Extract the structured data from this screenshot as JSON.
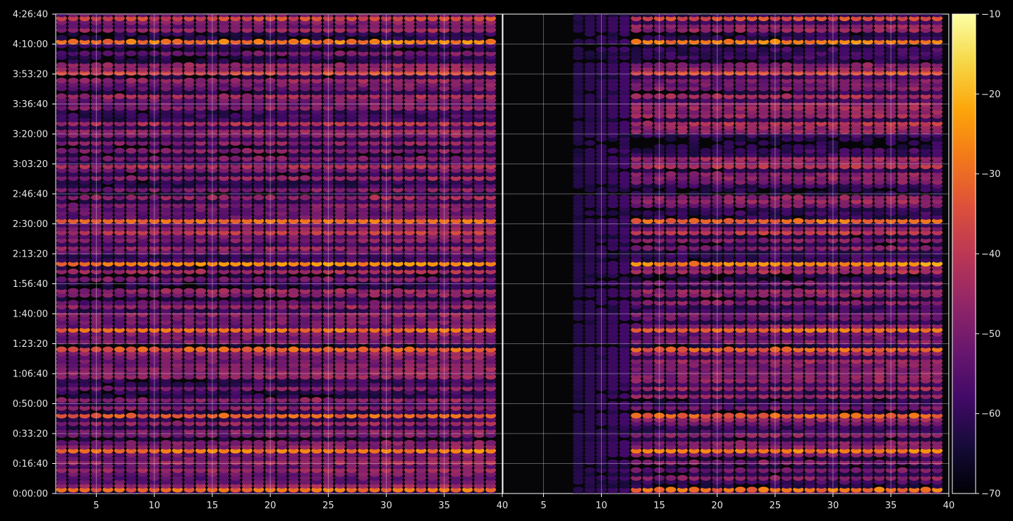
{
  "chart_data": {
    "type": "heatmap",
    "title": "",
    "xlabel": "",
    "ylabel": "",
    "panels": [
      {
        "name": "",
        "x_range": [
          1.5,
          40
        ],
        "x_ticks": [
          "5",
          "10",
          "15",
          "20",
          "25",
          "30",
          "35",
          "40"
        ],
        "x_tick_values": [
          5,
          10,
          15,
          20,
          25,
          30,
          35,
          40
        ]
      },
      {
        "name": "",
        "x_range": [
          1.5,
          40
        ],
        "x_ticks": [
          "5",
          "10",
          "15",
          "20",
          "25",
          "30",
          "35",
          "40"
        ],
        "x_tick_values": [
          5,
          10,
          15,
          20,
          25,
          30,
          35,
          40
        ]
      }
    ],
    "y_range_seconds": [
      0,
      16000
    ],
    "y_ticks": [
      "0:00:00",
      "0:16:40",
      "0:33:20",
      "0:50:00",
      "1:06:40",
      "1:23:20",
      "1:40:00",
      "1:56:40",
      "2:13:20",
      "2:30:00",
      "2:46:40",
      "3:03:20",
      "3:20:00",
      "3:36:40",
      "3:53:20",
      "4:10:00",
      "4:26:40"
    ],
    "y_tick_values": [
      0,
      1000,
      2000,
      3000,
      4000,
      5000,
      6000,
      7000,
      8000,
      9000,
      10000,
      11000,
      12000,
      13000,
      14000,
      15000,
      16000
    ],
    "colorbar": {
      "colormap": "inferno",
      "range": [
        -70,
        -10
      ],
      "ticks": [
        "−10",
        "−20",
        "−30",
        "−40",
        "−50",
        "−60",
        "−70"
      ],
      "tick_values": [
        -10,
        -20,
        -30,
        -40,
        -50,
        -60,
        -70
      ]
    },
    "grid": true,
    "strong_rows_seconds": [
      {
        "t": 15050,
        "v": -30
      },
      {
        "t": 14050,
        "v": -38
      },
      {
        "t": 12400,
        "v": -44
      },
      {
        "t": 9050,
        "v": -32
      },
      {
        "t": 8700,
        "v": -42
      },
      {
        "t": 7720,
        "v": -28
      },
      {
        "t": 6820,
        "v": -48
      },
      {
        "t": 5400,
        "v": -32
      },
      {
        "t": 4850,
        "v": -34
      },
      {
        "t": 2550,
        "v": -34
      },
      {
        "t": 1400,
        "v": -30
      },
      {
        "t": 180,
        "v": -32
      },
      {
        "t": 15850,
        "v": -38
      },
      {
        "t": 13300,
        "v": -46
      },
      {
        "t": 10880,
        "v": -44
      },
      {
        "t": 7400,
        "v": -46
      }
    ]
  }
}
